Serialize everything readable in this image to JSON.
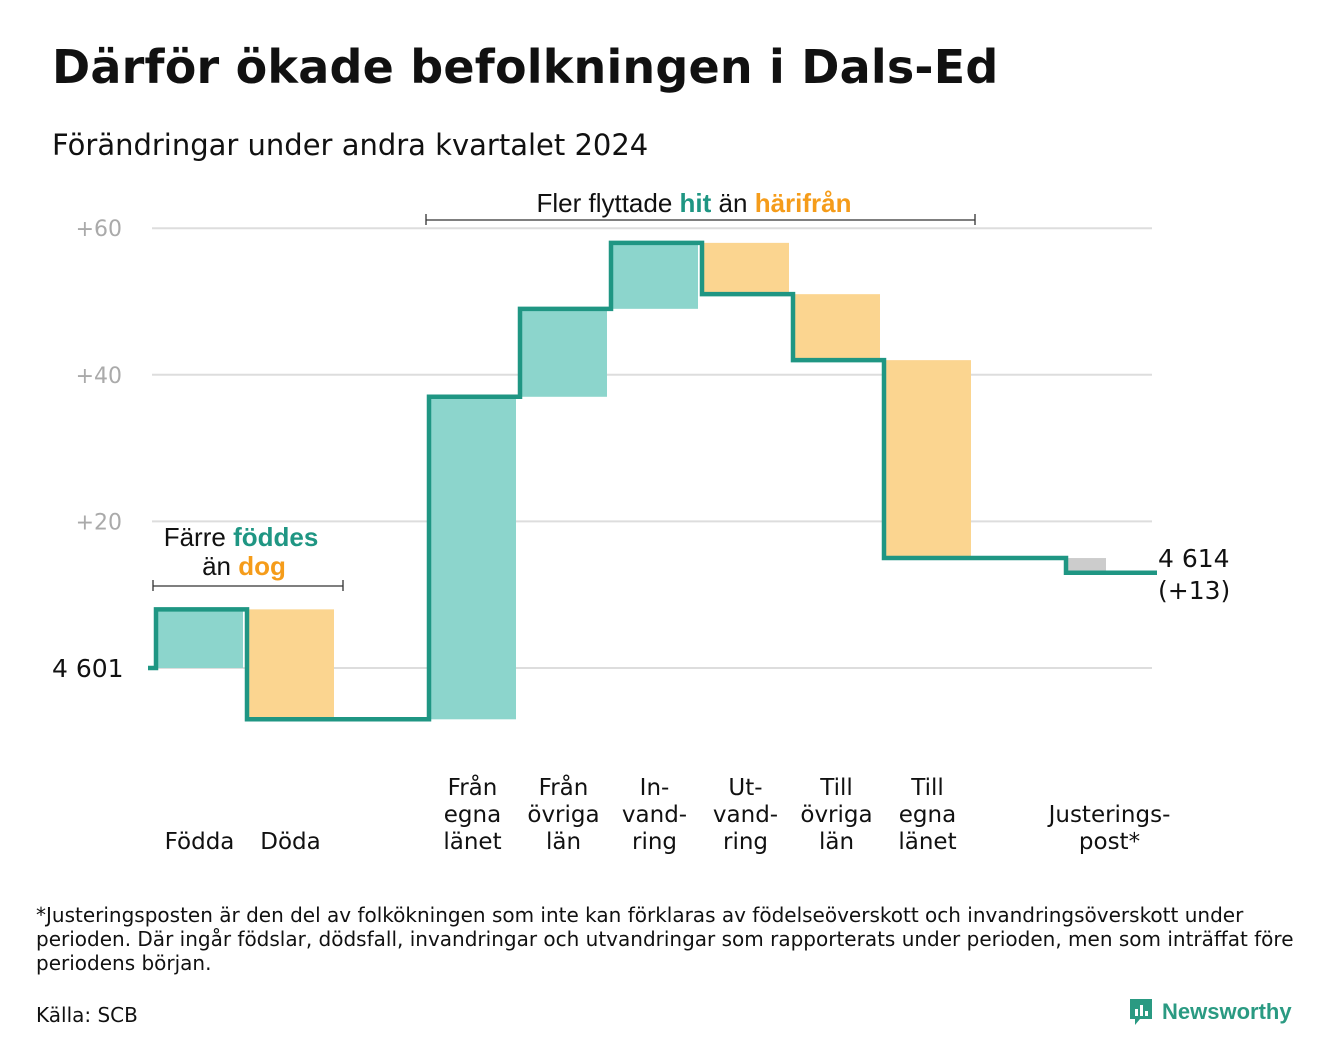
{
  "title": "Därför ökade befolkningen i Dals-Ed",
  "subtitle": "Förändringar under andra kvartalet 2024",
  "colors": {
    "increase": "#8cd5cc",
    "decrease": "#fbd590",
    "adjustment": "#cccccc",
    "line": "#1f9683",
    "accent_teal": "#1f9683",
    "accent_orange": "#f59c1a",
    "grid": "#dddddd",
    "tick": "#aaaaaa"
  },
  "annotations": {
    "births": {
      "prefix": "Färre",
      "strong1": "föddes",
      "mid": "än",
      "strong2": "dog"
    },
    "migration": {
      "prefix": "Fler flyttade",
      "strong1": "hit",
      "mid": "än",
      "strong2": "härifrån"
    }
  },
  "chart_data": {
    "type": "waterfall",
    "start_label": "4 601",
    "end_label": "4 614",
    "end_change_label": "(+13)",
    "start_value": 4601,
    "end_value": 4614,
    "y_axis": {
      "ticks": [
        "+20",
        "+40",
        "+60"
      ],
      "tick_values": [
        20,
        40,
        60
      ],
      "range": [
        -7,
        60
      ]
    },
    "grid": true,
    "steps": [
      {
        "label_lines": [
          "Födda"
        ],
        "change": 8,
        "kind": "increase"
      },
      {
        "label_lines": [
          "Döda"
        ],
        "change": -15,
        "kind": "decrease"
      },
      {
        "label_lines": [
          "Från",
          "egna",
          "länet"
        ],
        "change": 44,
        "kind": "increase"
      },
      {
        "label_lines": [
          "Från",
          "övriga",
          "län"
        ],
        "change": 12,
        "kind": "increase"
      },
      {
        "label_lines": [
          "In-",
          "vand-",
          "ring"
        ],
        "change": 9,
        "kind": "increase"
      },
      {
        "label_lines": [
          "Ut-",
          "vand-",
          "ring"
        ],
        "change": -7,
        "kind": "decrease"
      },
      {
        "label_lines": [
          "Till",
          "övriga",
          "län"
        ],
        "change": -9,
        "kind": "decrease"
      },
      {
        "label_lines": [
          "Till",
          "egna",
          "länet"
        ],
        "change": -27,
        "kind": "decrease"
      },
      {
        "label_lines": [
          "Justerings-",
          "post*"
        ],
        "change": -2,
        "kind": "adjustment"
      }
    ]
  },
  "footnote": "*Justeringsposten är den del av folkökningen som inte kan förklaras av födelseöverskott och invandringsöverskott under perioden. Där ingår födslar, dödsfall, invandringar och utvandringar som rapporterats under perioden, men som inträffat före periodens början.",
  "source": "Källa: SCB",
  "brand": {
    "name": "Newsworthy",
    "icon": "newsworthy-logo-icon"
  }
}
